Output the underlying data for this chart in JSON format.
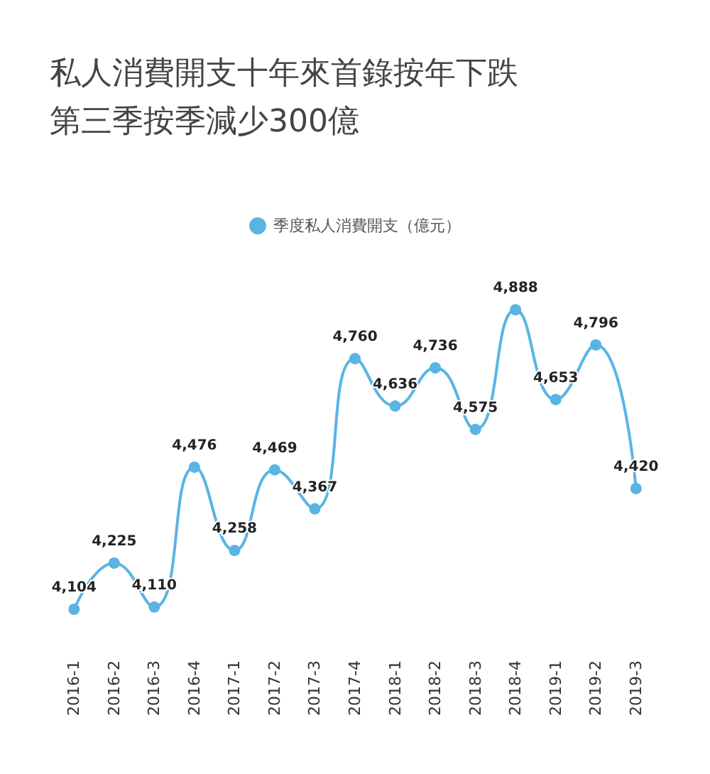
{
  "chart_data": {
    "type": "line",
    "title": "私人消費開支十年來首錄按年下跌",
    "subtitle": "第三季按季減少300億",
    "categories": [
      "2016-1",
      "2016-2",
      "2016-3",
      "2016-4",
      "2017-1",
      "2017-2",
      "2017-3",
      "2017-4",
      "2018-1",
      "2018-2",
      "2018-3",
      "2018-4",
      "2019-1",
      "2019-2",
      "2019-3"
    ],
    "series": [
      {
        "name": "季度私人消費開支（億元）",
        "color": "#5ab4e3",
        "values": [
          4104,
          4225,
          4110,
          4476,
          4258,
          4469,
          4367,
          4760,
          4636,
          4736,
          4575,
          4888,
          4653,
          4796,
          4420
        ],
        "value_labels": [
          "4,104",
          "4,225",
          "4,110",
          "4,476",
          "4,258",
          "4,469",
          "4,367",
          "4,760",
          "4,636",
          "4,736",
          "4,575",
          "4,888",
          "4,653",
          "4,796",
          "4,420"
        ]
      }
    ],
    "legend": "top",
    "marker": "circle",
    "grid": false
  }
}
